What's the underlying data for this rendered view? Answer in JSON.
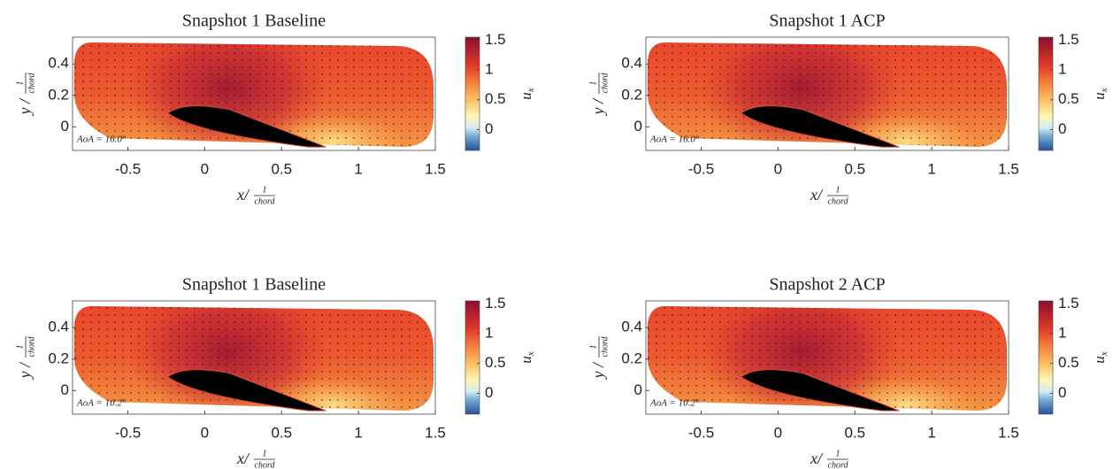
{
  "chart_data": [
    {
      "type": "field",
      "title": "Snapshot 1 Baseline",
      "annotation": "AoA = 16.0°",
      "xlabel": "x/",
      "xlabel_num": "1",
      "xlabel_den": "chord",
      "ylabel": "y /",
      "ylabel_num": "1",
      "ylabel_den": "chord",
      "colorbar_label": "u",
      "colorbar_label_sub": "x",
      "xlim": [
        -0.86,
        1.5
      ],
      "ylim": [
        -0.15,
        0.57
      ],
      "xticks": [
        -0.5,
        0,
        0.5,
        1,
        1.5
      ],
      "yticks": [
        0,
        0.2,
        0.4
      ],
      "clim": [
        -0.35,
        1.55
      ],
      "cticks": [
        0,
        0.5,
        1,
        1.5
      ]
    },
    {
      "type": "field",
      "title": "Snapshot 1 ACP",
      "annotation": "AoA = 16.0°",
      "xlabel": "x/",
      "xlabel_num": "1",
      "xlabel_den": "chord",
      "ylabel": "y /",
      "ylabel_num": "1",
      "ylabel_den": "chord",
      "colorbar_label": "u",
      "colorbar_label_sub": "x",
      "xlim": [
        -0.86,
        1.5
      ],
      "ylim": [
        -0.15,
        0.57
      ],
      "xticks": [
        -0.5,
        0,
        0.5,
        1,
        1.5
      ],
      "yticks": [
        0,
        0.2,
        0.4
      ],
      "clim": [
        -0.35,
        1.55
      ],
      "cticks": [
        0,
        0.5,
        1,
        1.5
      ]
    },
    {
      "type": "field",
      "title": "Snapshot 1 Baseline",
      "annotation": "AoA = 10.2°",
      "xlabel": "x/",
      "xlabel_num": "1",
      "xlabel_den": "chord",
      "ylabel": "y /",
      "ylabel_num": "1",
      "ylabel_den": "chord",
      "colorbar_label": "u",
      "colorbar_label_sub": "x",
      "xlim": [
        -0.86,
        1.5
      ],
      "ylim": [
        -0.15,
        0.57
      ],
      "xticks": [
        -0.5,
        0,
        0.5,
        1,
        1.5
      ],
      "yticks": [
        0,
        0.2,
        0.4
      ],
      "clim": [
        -0.35,
        1.55
      ],
      "cticks": [
        0,
        0.5,
        1,
        1.5
      ]
    },
    {
      "type": "field",
      "title": "Snapshot 2 ACP",
      "annotation": "AoA = 10.2°",
      "xlabel": "x/",
      "xlabel_num": "1",
      "xlabel_den": "chord",
      "ylabel": "y /",
      "ylabel_num": "1",
      "ylabel_den": "chord",
      "colorbar_label": "u",
      "colorbar_label_sub": "x",
      "xlim": [
        -0.86,
        1.5
      ],
      "ylim": [
        -0.15,
        0.57
      ],
      "xticks": [
        -0.5,
        0,
        0.5,
        1,
        1.5
      ],
      "yticks": [
        0,
        0.2,
        0.4
      ],
      "clim": [
        -0.35,
        1.55
      ],
      "cticks": [
        0,
        0.5,
        1,
        1.5
      ]
    }
  ]
}
